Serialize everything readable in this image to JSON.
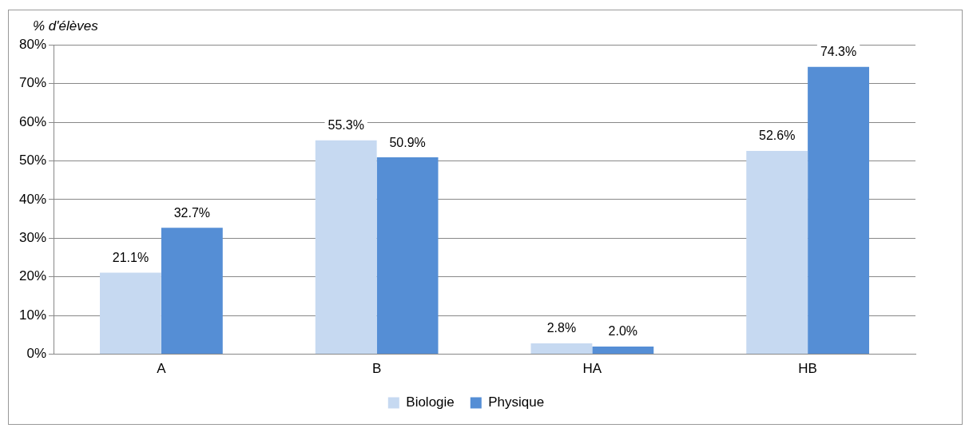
{
  "chart_data": {
    "type": "bar",
    "ylabel": "% d'élèves",
    "categories": [
      "A",
      "B",
      "HA",
      "HB"
    ],
    "series": [
      {
        "name": "Biologie",
        "color": "#c6d9f1",
        "values": [
          21.1,
          55.3,
          2.8,
          52.6
        ],
        "value_labels": [
          "21.1%",
          "55.3%",
          "2.8%",
          "52.6%"
        ]
      },
      {
        "name": "Physique",
        "color": "#558ed5",
        "values": [
          32.7,
          50.9,
          2.0,
          74.3
        ],
        "value_labels": [
          "32.7%",
          "50.9%",
          "2.0%",
          "74.3%"
        ]
      }
    ],
    "ylim": [
      0,
      80
    ],
    "yticks": [
      {
        "value": 0,
        "label": "0%"
      },
      {
        "value": 10,
        "label": "10%"
      },
      {
        "value": 20,
        "label": "20%"
      },
      {
        "value": 30,
        "label": "30%"
      },
      {
        "value": 40,
        "label": "40%"
      },
      {
        "value": 50,
        "label": "50%"
      },
      {
        "value": 60,
        "label": "60%"
      },
      {
        "value": 70,
        "label": "70%"
      },
      {
        "value": 80,
        "label": "80%"
      }
    ],
    "grid": "y",
    "legend": "bottom"
  }
}
